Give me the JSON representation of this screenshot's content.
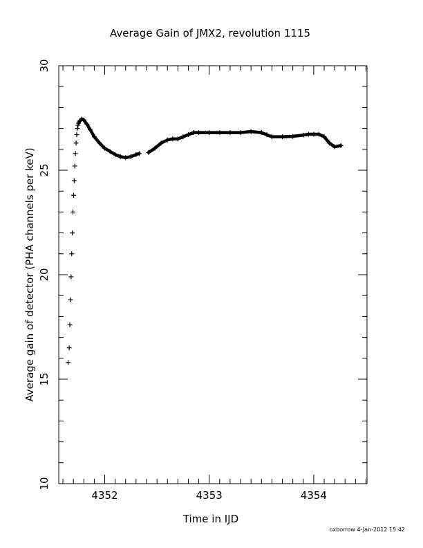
{
  "chart_data": {
    "type": "scatter",
    "title": "Average Gain of JMX2, revolution 1115",
    "xlabel": "Time in IJD",
    "ylabel": "Average gain of detector (PHA channels per keV)",
    "xlim": [
      4351.56,
      4354.51
    ],
    "ylim": [
      10,
      30
    ],
    "x_ticks": [
      4352,
      4353,
      4354
    ],
    "y_ticks": [
      10,
      15,
      20,
      25,
      30
    ],
    "grid": false,
    "marker": "+",
    "color": "#000000",
    "series": [
      {
        "x": [
          4351.65,
          4351.66,
          4351.666,
          4351.672,
          4351.678,
          4351.684,
          4351.69,
          4351.696,
          4351.702,
          4351.708,
          4351.714,
          4351.72,
          4351.726,
          4351.732,
          4351.738,
          4351.744,
          4351.75,
          4351.76,
          4351.78,
          4351.8,
          4351.83,
          4351.86,
          4351.9,
          4351.95,
          4352.0,
          4352.05,
          4352.1,
          4352.15,
          4352.2,
          4352.25,
          4352.3,
          4352.33,
          4352.42,
          4352.48,
          4352.54,
          4352.6,
          4352.65,
          4352.7,
          4352.75,
          4352.8,
          4352.85,
          4352.9,
          4353.0,
          4353.1,
          4353.2,
          4353.3,
          4353.4,
          4353.5,
          4353.55,
          4353.6,
          4353.7,
          4353.8,
          4353.9,
          4353.95,
          4354.0,
          4354.05,
          4354.1,
          4354.15,
          4354.2,
          4354.26
        ],
        "y": [
          15.8,
          16.5,
          17.6,
          18.8,
          19.9,
          21.0,
          22.0,
          23.0,
          23.8,
          24.5,
          25.2,
          25.8,
          26.3,
          26.7,
          27.0,
          27.15,
          27.25,
          27.35,
          27.45,
          27.4,
          27.2,
          26.95,
          26.6,
          26.3,
          26.05,
          25.9,
          25.75,
          25.65,
          25.6,
          25.65,
          25.75,
          25.8,
          25.85,
          26.05,
          26.3,
          26.45,
          26.5,
          26.5,
          26.6,
          26.7,
          26.8,
          26.8,
          26.8,
          26.8,
          26.8,
          26.8,
          26.85,
          26.8,
          26.7,
          26.6,
          26.6,
          26.62,
          26.68,
          26.72,
          26.72,
          26.72,
          26.6,
          26.3,
          26.12,
          26.18
        ]
      }
    ]
  },
  "footer": {
    "stamp": "oxborrow   4-Jan-2012 15:42"
  }
}
